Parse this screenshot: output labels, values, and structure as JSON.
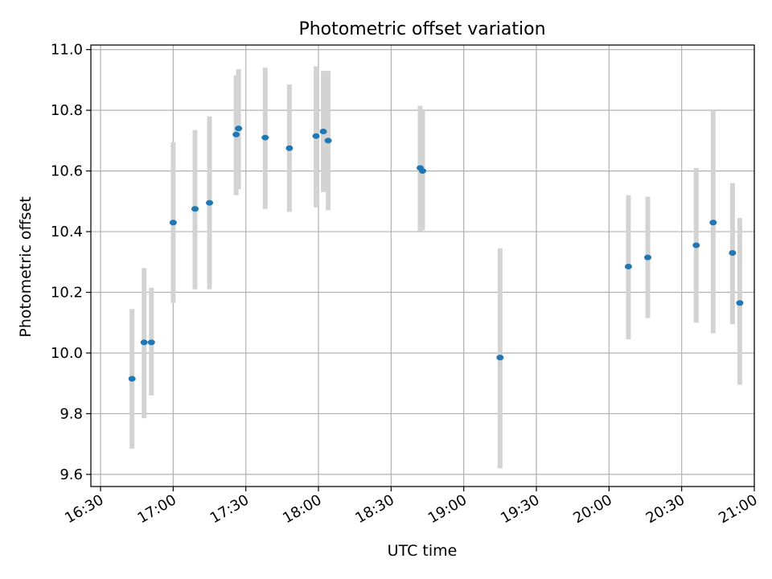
{
  "chart_data": {
    "type": "scatter",
    "title": "Photometric offset variation",
    "xlabel": "UTC time",
    "ylabel": "Photometric offset",
    "xlim": [
      "16:26",
      "21:00"
    ],
    "ylim": [
      9.56,
      11.015
    ],
    "grid": true,
    "xticks": [
      "16:30",
      "17:00",
      "17:30",
      "18:00",
      "18:30",
      "19:00",
      "19:30",
      "20:00",
      "20:30",
      "21:00"
    ],
    "yticks": [
      "9.6",
      "9.8",
      "10.0",
      "10.2",
      "10.4",
      "10.6",
      "10.8",
      "11.0"
    ],
    "series": [
      {
        "marker_color": "#1f77b4",
        "errorbar_color": "#d3d3d3",
        "points": [
          {
            "x": "16:43",
            "y": 9.915,
            "ylo": 9.685,
            "yhi": 10.145
          },
          {
            "x": "16:48",
            "y": 10.035,
            "ylo": 9.785,
            "yhi": 10.28
          },
          {
            "x": "16:51",
            "y": 10.035,
            "ylo": 9.86,
            "yhi": 10.215
          },
          {
            "x": "17:00",
            "y": 10.43,
            "ylo": 10.165,
            "yhi": 10.695
          },
          {
            "x": "17:09",
            "y": 10.475,
            "ylo": 10.21,
            "yhi": 10.735
          },
          {
            "x": "17:15",
            "y": 10.495,
            "ylo": 10.21,
            "yhi": 10.78
          },
          {
            "x": "17:26",
            "y": 10.72,
            "ylo": 10.52,
            "yhi": 10.915
          },
          {
            "x": "17:27",
            "y": 10.74,
            "ylo": 10.54,
            "yhi": 10.935
          },
          {
            "x": "17:38",
            "y": 10.71,
            "ylo": 10.475,
            "yhi": 10.94
          },
          {
            "x": "17:48",
            "y": 10.675,
            "ylo": 10.465,
            "yhi": 10.885
          },
          {
            "x": "17:59",
            "y": 10.715,
            "ylo": 10.48,
            "yhi": 10.945
          },
          {
            "x": "18:02",
            "y": 10.73,
            "ylo": 10.53,
            "yhi": 10.93
          },
          {
            "x": "18:04",
            "y": 10.7,
            "ylo": 10.47,
            "yhi": 10.93
          },
          {
            "x": "18:42",
            "y": 10.61,
            "ylo": 10.4,
            "yhi": 10.815
          },
          {
            "x": "18:43",
            "y": 10.6,
            "ylo": 10.405,
            "yhi": 10.8
          },
          {
            "x": "19:15",
            "y": 9.985,
            "ylo": 9.62,
            "yhi": 10.345
          },
          {
            "x": "20:08",
            "y": 10.285,
            "ylo": 10.045,
            "yhi": 10.52
          },
          {
            "x": "20:16",
            "y": 10.315,
            "ylo": 10.115,
            "yhi": 10.515
          },
          {
            "x": "20:36",
            "y": 10.355,
            "ylo": 10.1,
            "yhi": 10.61
          },
          {
            "x": "20:43",
            "y": 10.43,
            "ylo": 10.065,
            "yhi": 10.8
          },
          {
            "x": "20:51",
            "y": 10.33,
            "ylo": 10.095,
            "yhi": 10.56
          },
          {
            "x": "20:54",
            "y": 10.165,
            "ylo": 9.895,
            "yhi": 10.445
          }
        ]
      }
    ]
  }
}
